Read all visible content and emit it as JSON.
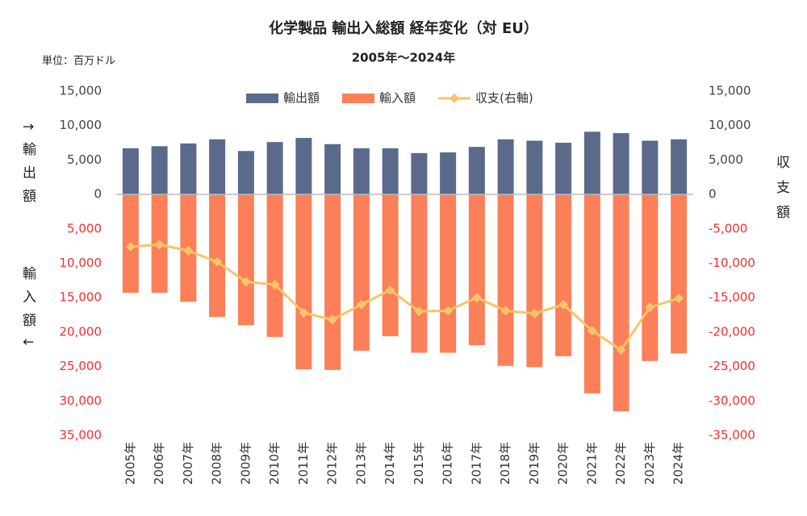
{
  "chart_data": {
    "type": "bar_line",
    "title": "化学製品 輸出入総額 経年変化（対 EU）",
    "subtitle": "2005年～2024年",
    "unit_label": "単位：百万ドル",
    "y_label_top": "↑輸出額",
    "y_label_bottom": "輸入額↓",
    "y2_label": "収支額",
    "categories": [
      "2005年",
      "2006年",
      "2007年",
      "2008年",
      "2009年",
      "2010年",
      "2011年",
      "2012年",
      "2013年",
      "2014年",
      "2015年",
      "2016年",
      "2017年",
      "2018年",
      "2019年",
      "2020年",
      "2021年",
      "2022年",
      "2023年",
      "2024年"
    ],
    "series": [
      {
        "name": "輸出額",
        "type": "bar",
        "color": "#5b6a8b",
        "values": [
          6700,
          7000,
          7400,
          8000,
          6300,
          7600,
          8200,
          7300,
          6700,
          6700,
          6000,
          6100,
          6900,
          8000,
          7800,
          7500,
          9100,
          8900,
          7800,
          8000
        ]
      },
      {
        "name": "輸入額",
        "type": "bar",
        "color": "#fb7f58",
        "values": [
          -14300,
          -14300,
          -15600,
          -17800,
          -19000,
          -20700,
          -25400,
          -25500,
          -22700,
          -20600,
          -23000,
          -23000,
          -21900,
          -24900,
          -25100,
          -23500,
          -28900,
          -31500,
          -24200,
          -23100
        ]
      },
      {
        "name": "収支(右軸)",
        "type": "line",
        "axis": "y2",
        "color": "#f6c46b",
        "values": [
          -7600,
          -7300,
          -8200,
          -9800,
          -12700,
          -13100,
          -17200,
          -18200,
          -16000,
          -13900,
          -17000,
          -16900,
          -15000,
          -16900,
          -17300,
          -16000,
          -19800,
          -22600,
          -16400,
          -15100
        ]
      }
    ],
    "ylim": [
      -35000,
      15000
    ],
    "yticks": [
      {
        "value": 15000,
        "label": "15,000"
      },
      {
        "value": 10000,
        "label": "10,000"
      },
      {
        "value": 5000,
        "label": "5,000"
      },
      0,
      {
        "value": -5000,
        "label": "5,000"
      },
      {
        "value": -10000,
        "label": "10,000"
      },
      {
        "value": -15000,
        "label": "15,000"
      },
      {
        "value": -20000,
        "label": "20,000"
      },
      {
        "value": -25000,
        "label": "25,000"
      },
      {
        "value": -30000,
        "label": "30,000"
      },
      {
        "value": -35000,
        "label": "35,000"
      }
    ],
    "y2lim": [
      -35000,
      15000
    ],
    "y2ticks": [
      {
        "value": 15000,
        "label": "15,000"
      },
      {
        "value": 10000,
        "label": "10,000"
      },
      {
        "value": 5000,
        "label": "5,000"
      },
      0,
      {
        "value": -5000,
        "label": "-5,000"
      },
      {
        "value": -10000,
        "label": "-10,000"
      },
      {
        "value": -15000,
        "label": "-15,000"
      },
      {
        "value": -20000,
        "label": "-20,000"
      },
      {
        "value": -25000,
        "label": "-25,000"
      },
      {
        "value": -30000,
        "label": "-30,000"
      },
      {
        "value": -35000,
        "label": "-35,000"
      }
    ],
    "legend": "top",
    "grid": false
  }
}
